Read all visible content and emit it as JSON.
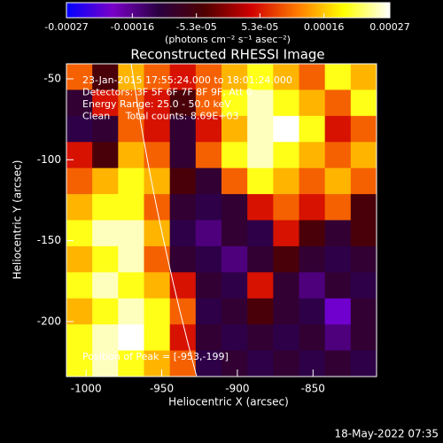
{
  "chart_data": {
    "type": "heatmap",
    "title": "Reconstructed RHESSI Image",
    "colorbar_label": "(photons cm⁻² s⁻¹ asec⁻²)",
    "colorbar_lim": [
      -0.00027,
      0.00027
    ],
    "colorbar_ticks": [
      -0.00027,
      -0.00016,
      {
        "value": -5.3e-05,
        "label": "-5.3e-05"
      },
      {
        "value": 5.3e-05,
        "label": "5.3e-05"
      },
      0.00016,
      0.00027
    ],
    "colormap": [
      "#0000ff",
      "#7a00c8",
      "#2a0040",
      "#500000",
      "#d00000",
      "#ff7a00",
      "#ffff00",
      "#ffffff"
    ],
    "x_label": "Heliocentric X (arcsec)",
    "y_label": "Heliocentric Y (arcsec)",
    "xlim": [
      -1013,
      -808
    ],
    "ylim": [
      -234,
      -40.7
    ],
    "xticks": [
      -1000,
      -950,
      -900,
      -850
    ],
    "yticks": [
      -50,
      -100,
      -150,
      -200
    ],
    "annotations": [
      "23-Jan-2015 17:55:24.000 to 18:01:24.000",
      "Detectors: 3F 5F 6F 7F 8F 9F, Att 0",
      "Energy Range: 25.0 - 50.0 keV",
      "Clean     Total counts: 8.69E+03"
    ],
    "peak_label": "Position of Peak = [-953,-199]",
    "timestamp": "18-May-2022 07:35",
    "z": [
      [
        0.0001,
        -5e-05,
        0.00015,
        0.0001,
        5e-05,
        0.0001,
        0.00015,
        0.0002,
        0.00015,
        0.0001,
        0.0002,
        0.00015
      ],
      [
        -0.0001,
        5e-05,
        0.0001,
        5e-05,
        -5e-05,
        0.0001,
        0.0002,
        0.00025,
        0.0002,
        0.00015,
        0.0001,
        0.0002
      ],
      [
        -0.00012,
        -0.0001,
        0.0001,
        5e-05,
        -0.0001,
        5e-05,
        0.00015,
        0.00025,
        0.00027,
        0.0002,
        5e-05,
        0.0001
      ],
      [
        5e-05,
        -5e-05,
        0.00015,
        0.0001,
        -0.0001,
        0.0001,
        0.0002,
        0.00025,
        0.0002,
        0.00015,
        0.0001,
        0.00015
      ],
      [
        0.0001,
        0.00015,
        0.0002,
        0.00015,
        -5e-05,
        -0.0001,
        0.0001,
        0.0002,
        0.00015,
        0.0001,
        0.00015,
        0.0001
      ],
      [
        0.00015,
        0.0002,
        0.0002,
        0.0001,
        -0.0001,
        -0.00012,
        -0.0001,
        5e-05,
        0.0001,
        5e-05,
        0.0001,
        -5e-05
      ],
      [
        0.0002,
        0.00025,
        0.00025,
        0.00015,
        -0.00012,
        -0.00015,
        -0.0001,
        -0.00012,
        5e-05,
        -5e-05,
        -0.0001,
        -5e-05
      ],
      [
        0.00015,
        0.0002,
        0.00025,
        0.0001,
        -0.0001,
        -0.00012,
        -0.00015,
        -0.0001,
        -5e-05,
        -0.0001,
        -0.00012,
        -0.0001
      ],
      [
        0.0002,
        0.00025,
        0.0002,
        0.00015,
        5e-05,
        -0.0001,
        -0.00012,
        5e-05,
        -0.0001,
        -0.00015,
        -0.0001,
        -0.00012
      ],
      [
        0.00015,
        0.0002,
        0.00025,
        0.0002,
        0.0001,
        -0.00012,
        -0.0001,
        -5e-05,
        -0.0001,
        -0.00012,
        -0.0002,
        -0.0001
      ],
      [
        0.0002,
        0.00025,
        0.00027,
        0.0002,
        5e-05,
        -0.0001,
        -0.00012,
        -0.0001,
        -0.00012,
        -0.0001,
        -0.00015,
        -0.0001
      ],
      [
        0.0002,
        0.00025,
        0.0002,
        0.00015,
        0.0001,
        -0.00012,
        -0.0001,
        -0.00012,
        -0.0001,
        -0.00012,
        -0.0001,
        -0.00012
      ]
    ]
  }
}
